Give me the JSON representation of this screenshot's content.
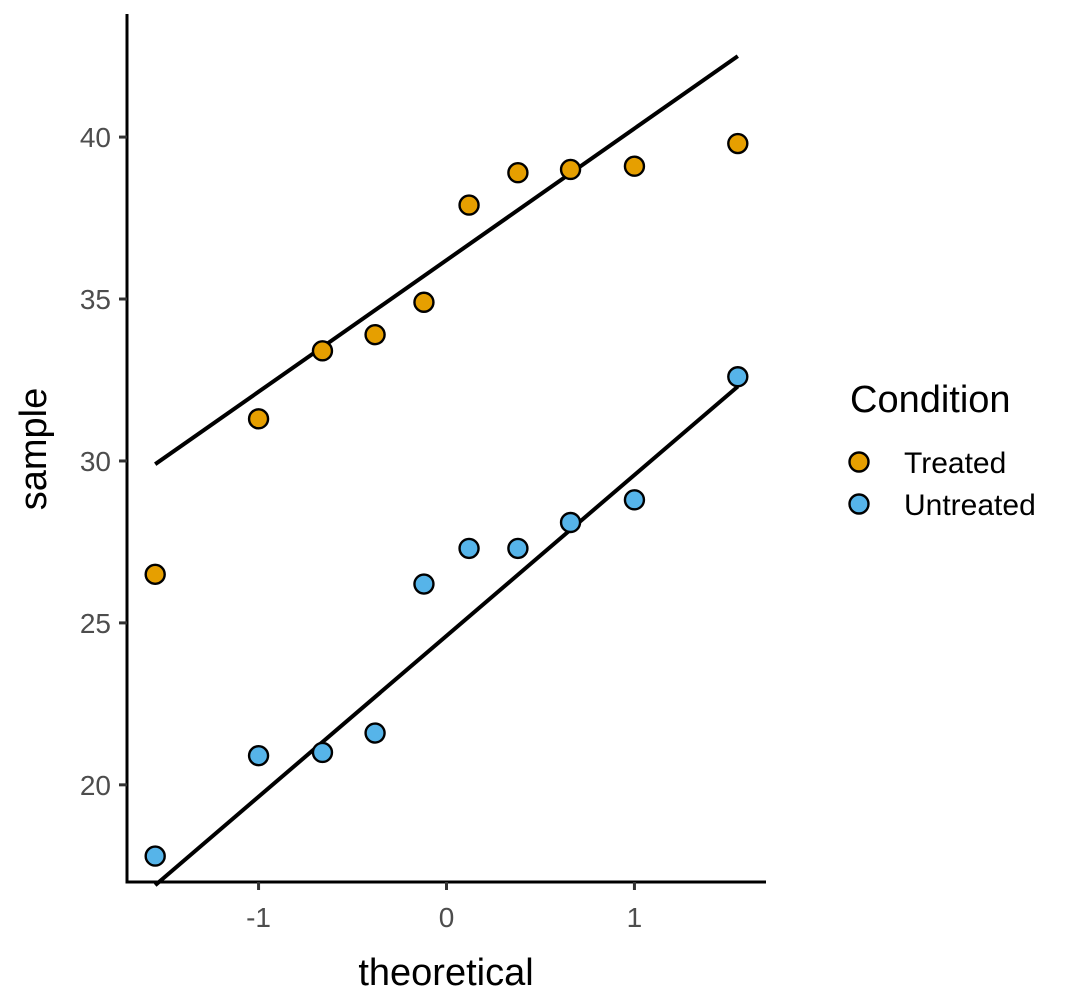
{
  "chart_data": {
    "type": "scatter",
    "subtype": "qq-plot",
    "title": "",
    "xlabel": "theoretical",
    "ylabel": "sample",
    "xlim": [
      -1.7,
      1.7
    ],
    "ylim": [
      17.0,
      43.8
    ],
    "x_ticks": [
      -1,
      0,
      1
    ],
    "x_tick_labels": [
      "-1",
      "0",
      "1"
    ],
    "y_ticks": [
      20,
      25,
      30,
      35,
      40
    ],
    "y_tick_labels": [
      "20",
      "25",
      "30",
      "35",
      "40"
    ],
    "grid": false,
    "legend": {
      "title": "Condition",
      "position": "right"
    },
    "series": [
      {
        "name": "Treated",
        "color": "#E69F00",
        "x": [
          -1.55,
          -1.0,
          -0.66,
          -0.38,
          -0.12,
          0.12,
          0.38,
          0.66,
          1.0,
          1.55
        ],
        "y": [
          26.5,
          31.3,
          33.4,
          33.9,
          34.9,
          37.9,
          38.9,
          39.0,
          39.1,
          39.8
        ],
        "qq_line": {
          "x": [
            -1.55,
            1.55
          ],
          "y": [
            29.9,
            42.5
          ]
        }
      },
      {
        "name": "Untreated",
        "color": "#56B4E9",
        "x": [
          -1.55,
          -1.0,
          -0.66,
          -0.38,
          -0.12,
          0.12,
          0.38,
          0.66,
          1.0,
          1.55
        ],
        "y": [
          17.8,
          20.9,
          21.0,
          21.6,
          26.2,
          27.3,
          27.3,
          28.1,
          28.8,
          32.6
        ],
        "qq_line": {
          "x": [
            -1.55,
            1.55
          ],
          "y": [
            16.9,
            32.3
          ]
        }
      }
    ]
  }
}
